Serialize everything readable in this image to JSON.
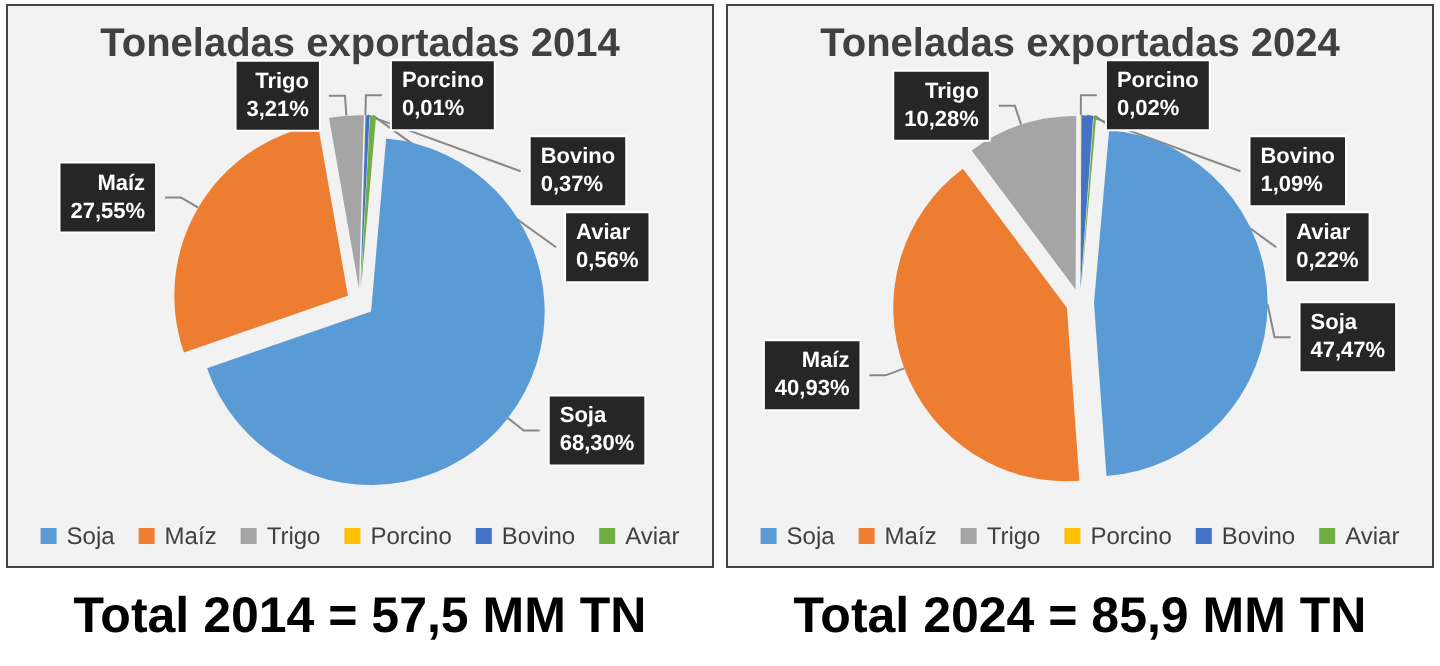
{
  "chart_data": [
    {
      "type": "pie",
      "title": "Toneladas exportadas 2014",
      "categories": [
        "Soja",
        "Maíz",
        "Trigo",
        "Porcino",
        "Bovino",
        "Aviar"
      ],
      "values": [
        68.3,
        27.55,
        3.21,
        0.01,
        0.37,
        0.56
      ],
      "value_labels": [
        "68,30%",
        "27,55%",
        "3,21%",
        "0,01%",
        "0,37%",
        "0,56%"
      ],
      "colors": [
        "#5b9bd5",
        "#ed7d31",
        "#a5a5a5",
        "#ffc000",
        "#4472c4",
        "#70ad47"
      ],
      "legend": "bottom",
      "annotations": [
        "Total 2014 = 57,5 MM TN"
      ]
    },
    {
      "type": "pie",
      "title": "Toneladas exportadas 2024",
      "categories": [
        "Soja",
        "Maíz",
        "Trigo",
        "Porcino",
        "Bovino",
        "Aviar"
      ],
      "values": [
        47.47,
        40.93,
        10.28,
        0.02,
        1.09,
        0.22
      ],
      "value_labels": [
        "47,47%",
        "40,93%",
        "10,28%",
        "0,02%",
        "1,09%",
        "0,22%"
      ],
      "colors": [
        "#5b9bd5",
        "#ed7d31",
        "#a5a5a5",
        "#ffc000",
        "#4472c4",
        "#70ad47"
      ],
      "legend": "bottom",
      "annotations": [
        "Total 2024 = 85,9 MM TN"
      ]
    }
  ]
}
